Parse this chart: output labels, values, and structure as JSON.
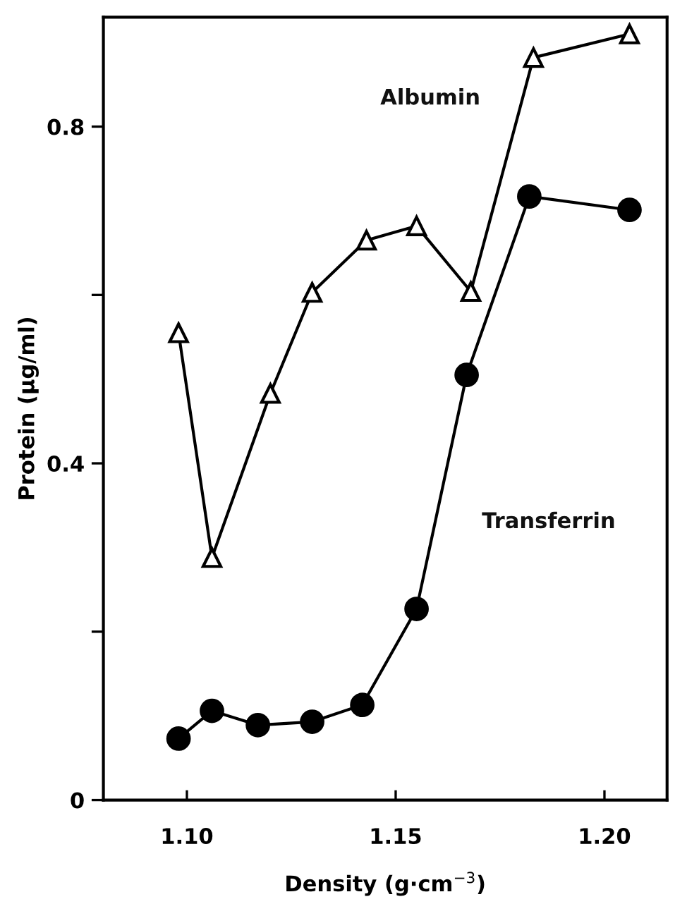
{
  "chart_data": {
    "type": "line",
    "xlabel": "Density (g·cm$^{−3}$)",
    "ylabel": "Protein (µg/ml)",
    "xlim": [
      1.08,
      1.215
    ],
    "xticks": [
      {
        "value": 1.1,
        "label": "1.10"
      },
      1.15,
      {
        "value": 1.2,
        "label": "1.20"
      }
    ],
    "ylim": [
      0,
      0.93
    ],
    "yticks": [
      0,
      {
        "value": 0.2,
        "label": null
      },
      0.4,
      {
        "value": 0.6,
        "label": null
      },
      0.8
    ],
    "grid": false,
    "legend": false,
    "series": [
      {
        "name": "Albumin",
        "color": "#000000",
        "marker": "triangle",
        "x": [
          1.098,
          1.106,
          1.12,
          1.13,
          1.143,
          1.155,
          1.168,
          1.183,
          1.206
        ],
        "values": [
          0.555,
          0.288,
          0.483,
          0.603,
          0.665,
          0.682,
          0.604,
          0.882,
          0.91
        ]
      },
      {
        "name": "Transferrin",
        "color": "#000000",
        "marker": "circle",
        "x": [
          1.098,
          1.106,
          1.117,
          1.13,
          1.142,
          1.155,
          1.167,
          1.182,
          1.206
        ],
        "values": [
          0.073,
          0.106,
          0.089,
          0.093,
          0.113,
          0.227,
          0.505,
          0.717,
          0.701
        ]
      }
    ]
  }
}
